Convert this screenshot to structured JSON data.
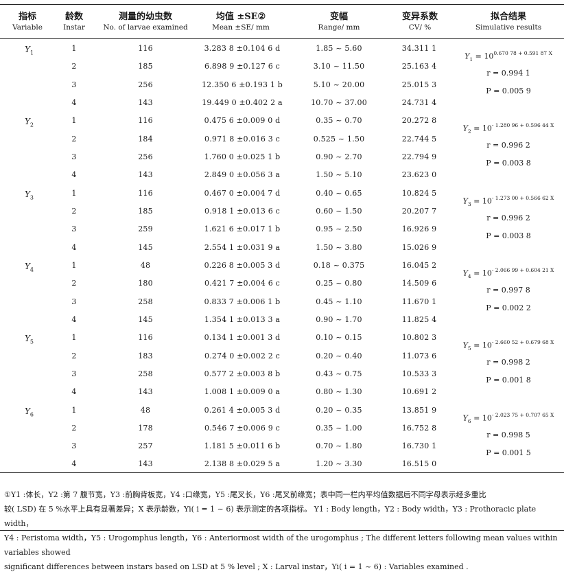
{
  "header": {
    "col_variable": {
      "zh": "指标",
      "en": "Variable"
    },
    "col_instar": {
      "zh": "龄数",
      "en": "Instar"
    },
    "col_number": {
      "zh": "测量的幼虫数",
      "en": "No. of larvae examined"
    },
    "col_mean": {
      "zh": "均值 ±SE②",
      "en": "Mean ±SE/ mm"
    },
    "col_range": {
      "zh": "变幅",
      "en": "Range/ mm"
    },
    "col_cv": {
      "zh": "变异系数",
      "en": "CV/ %"
    },
    "col_fit": {
      "zh": "拟合结果",
      "en": "Simulative results"
    }
  },
  "groups": [
    {
      "variable": "Y1",
      "rows": [
        {
          "instar": "1",
          "n": "116",
          "mean": "3.283 8 ±0.104 6 d",
          "range": "1.85 ~ 5.60",
          "cv": "34.311 1"
        },
        {
          "instar": "2",
          "n": "185",
          "mean": "6.898 9 ±0.127 6 c",
          "range": "3.10 ~ 11.50",
          "cv": "25.163 4"
        },
        {
          "instar": "3",
          "n": "256",
          "mean": "12.350 6 ±0.193 1 b",
          "range": "5.10 ~ 20.00",
          "cv": "25.015 3"
        },
        {
          "instar": "4",
          "n": "143",
          "mean": "19.449 0 ±0.402 2 a",
          "range": "10.70 ~ 37.00",
          "cv": "24.731 4"
        }
      ],
      "fit": {
        "y": "Y",
        "sub": "1",
        "eq_base": "= 10",
        "exp": "0.670 78 + 0.591 87 X",
        "r": "r = 0.994 1",
        "p": "P = 0.005 9"
      }
    },
    {
      "variable": "Y2",
      "rows": [
        {
          "instar": "1",
          "n": "116",
          "mean": "0.475 6 ±0.009 0 d",
          "range": "0.35 ~ 0.70",
          "cv": "20.272 8"
        },
        {
          "instar": "2",
          "n": "184",
          "mean": "0.971 8 ±0.016 3 c",
          "range": "0.525 ~ 1.50",
          "cv": "22.744 5"
        },
        {
          "instar": "3",
          "n": "256",
          "mean": "1.760 0 ±0.025 1 b",
          "range": "0.90 ~ 2.70",
          "cv": "22.794 9"
        },
        {
          "instar": "4",
          "n": "143",
          "mean": "2.849 0 ±0.056 3 a",
          "range": "1.50 ~ 5.10",
          "cv": "23.623 0"
        }
      ],
      "fit": {
        "y": "Y",
        "sub": "2",
        "eq_base": "= 10",
        "exp": "- 1.280 96 + 0.596 44 X",
        "r": "r = 0.996 2",
        "p": "P = 0.003 8"
      }
    },
    {
      "variable": "Y3",
      "rows": [
        {
          "instar": "1",
          "n": "116",
          "mean": "0.467 0 ±0.004 7 d",
          "range": "0.40 ~ 0.65",
          "cv": "10.824 5"
        },
        {
          "instar": "2",
          "n": "185",
          "mean": "0.918 1 ±0.013 6 c",
          "range": "0.60 ~ 1.50",
          "cv": "20.207 7"
        },
        {
          "instar": "3",
          "n": "259",
          "mean": "1.621 6 ±0.017 1 b",
          "range": "0.95 ~ 2.50",
          "cv": "16.926 9"
        },
        {
          "instar": "4",
          "n": "145",
          "mean": "2.554 1 ±0.031 9 a",
          "range": "1.50 ~ 3.80",
          "cv": "15.026 9"
        }
      ],
      "fit": {
        "y": "Y",
        "sub": "3",
        "eq_base": "= 10",
        "exp": "- 1.273 00 + 0.566 62 X",
        "r": "r = 0.996 2",
        "p": "P = 0.003 8"
      }
    },
    {
      "variable": "Y4",
      "rows": [
        {
          "instar": "1",
          "n": "48",
          "mean": "0.226 8 ±0.005 3 d",
          "range": "0.18 ~ 0.375",
          "cv": "16.045 2"
        },
        {
          "instar": "2",
          "n": "180",
          "mean": "0.421 7 ±0.004 6 c",
          "range": "0.25 ~ 0.80",
          "cv": "14.509 6"
        },
        {
          "instar": "3",
          "n": "258",
          "mean": "0.833 7 ±0.006 1 b",
          "range": "0.45 ~ 1.10",
          "cv": "11.670 1"
        },
        {
          "instar": "4",
          "n": "145",
          "mean": "1.354 1 ±0.013 3 a",
          "range": "0.90 ~ 1.70",
          "cv": "11.825 4"
        }
      ],
      "fit": {
        "y": "Y",
        "sub": "4",
        "eq_base": "= 10",
        "exp": "- 2.066 99 + 0.604 21 X",
        "r": "r = 0.997 8",
        "p": "P = 0.002 2"
      }
    },
    {
      "variable": "Y5",
      "rows": [
        {
          "instar": "1",
          "n": "116",
          "mean": "0.134 1 ±0.001 3 d",
          "range": "0.10 ~ 0.15",
          "cv": "10.802 3"
        },
        {
          "instar": "2",
          "n": "183",
          "mean": "0.274 0 ±0.002 2 c",
          "range": "0.20 ~ 0.40",
          "cv": "11.073 6"
        },
        {
          "instar": "3",
          "n": "258",
          "mean": "0.577 2 ±0.003 8 b",
          "range": "0.43 ~ 0.75",
          "cv": "10.533 3"
        },
        {
          "instar": "4",
          "n": "143",
          "mean": "1.008 1 ±0.009 0 a",
          "range": "0.80 ~ 1.30",
          "cv": "10.691 2"
        }
      ],
      "fit": {
        "y": "Y",
        "sub": "5",
        "eq_base": "= 10",
        "exp": "- 2.660 52 + 0.679 68 X",
        "r": "r = 0.998 2",
        "p": "P = 0.001 8"
      }
    },
    {
      "variable": "Y6",
      "rows": [
        {
          "instar": "1",
          "n": "48",
          "mean": "0.261 4 ±0.005 3 d",
          "range": "0.20 ~ 0.35",
          "cv": "13.851 9"
        },
        {
          "instar": "2",
          "n": "178",
          "mean": "0.546 7 ±0.006 9 c",
          "range": "0.35 ~ 1.00",
          "cv": "16.752 8"
        },
        {
          "instar": "3",
          "n": "257",
          "mean": "1.181 5 ±0.011 6 b",
          "range": "0.70 ~ 1.80",
          "cv": "16.730 1"
        },
        {
          "instar": "4",
          "n": "143",
          "mean": "2.138 8 ±0.029 5 a",
          "range": "1.20 ~ 3.30",
          "cv": "16.515 0"
        }
      ],
      "fit": {
        "y": "Y",
        "sub": "6",
        "eq_base": "= 10",
        "exp": "- 2.023 75 + 0.707 65 X",
        "r": "r = 0.998 5",
        "p": "P = 0.001 5"
      }
    }
  ],
  "footnote": {
    "line1": "①Y1 :体长，Y2 :第 7 腹节宽，Y3 :前胸背板宽，Y4 :口缘宽，Y5 :尾叉长，Y6 :尾叉前缘宽；表中同一栏内平均值数据后不同字母表示经多重比",
    "line2": "较( LSD) 在 5 %水平上具有显著差异；X 表示龄数，Yi( i = 1 ~ 6) 表示测定的各项指标。 Y1 : Body length，Y2 : Body width，Y3 : Prothoracic plate width，",
    "line3": "Y4 : Peristoma width，Y5 : Urogomphus length，Y6 : Anteriormost width of the urogomphus ; The different letters following mean values within variables showed",
    "line4": "significant differences between instars based on LSD at 5 % level ; X : Larval instar，Yi( i = 1 ~ 6) : Variables examined ."
  }
}
